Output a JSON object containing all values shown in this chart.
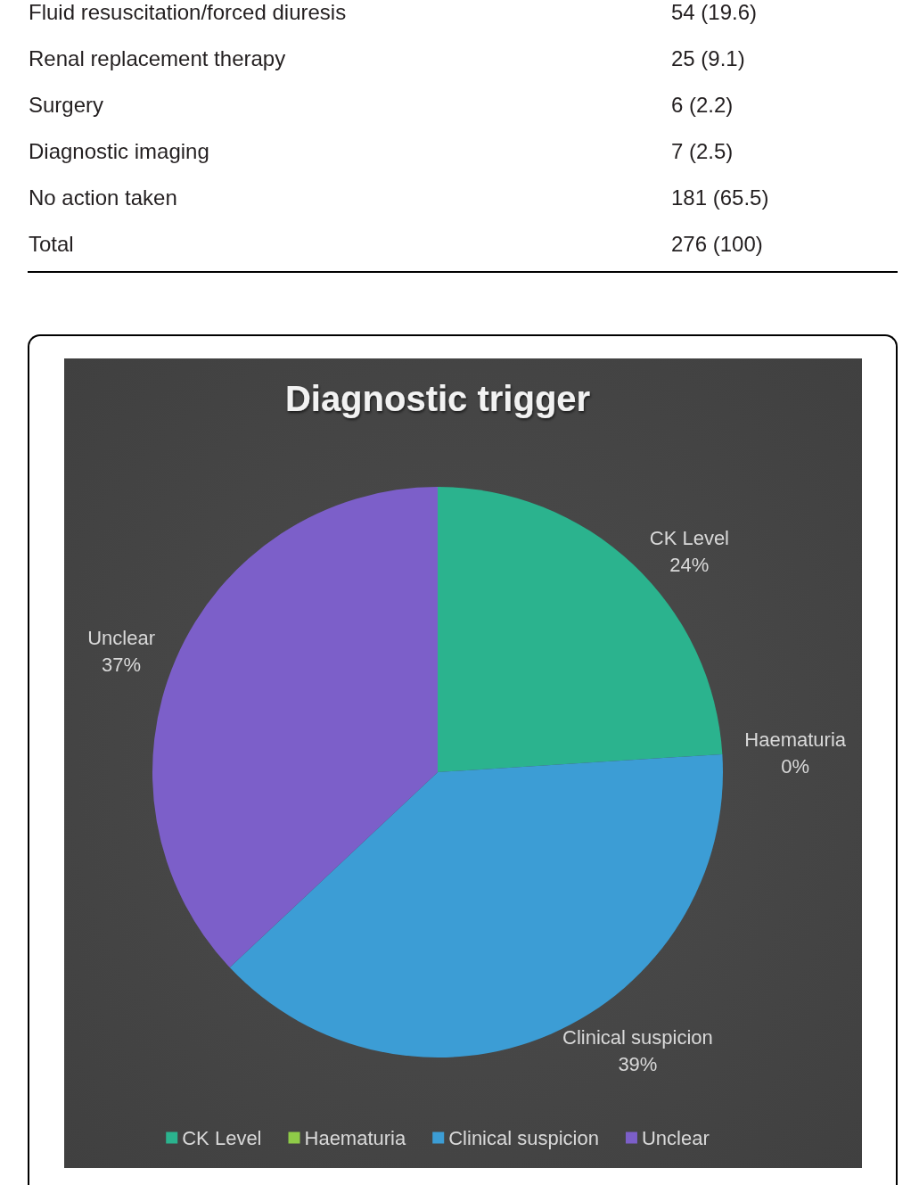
{
  "chart_data": [
    {
      "type": "other",
      "annotations": [
        "Fluid resuscitation/forced diuresis",
        "54 (19.6)",
        "Renal replacement therapy",
        "25 (9.1)",
        "Surgery",
        "6 (2.2)",
        "Diagnostic imaging",
        "7 (2.5)",
        "No action taken",
        "181 (65.5)",
        "Total",
        "276 (100)"
      ]
    },
    {
      "type": "pie",
      "title": "Diagnostic trigger",
      "categories": [
        "CK Level",
        "Haematuria",
        "Clinical suspicion",
        "Unclear"
      ],
      "values": [
        24,
        0,
        39,
        37
      ],
      "colors": [
        "#2bb38e",
        "#8fcb48",
        "#3c9dd5",
        "#7c5fc9"
      ],
      "value_labels": [
        "24%",
        "0%",
        "39%",
        "37%"
      ],
      "legend": "bottom"
    }
  ]
}
